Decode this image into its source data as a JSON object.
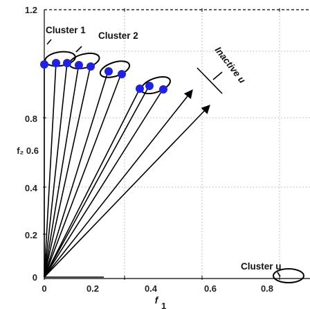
{
  "x_ticks": [
    "0",
    "0.2",
    "0.4",
    "0.6",
    "0.8"
  ],
  "y_ticks": [
    "1.2",
    "0.8",
    "0.6",
    "0.4",
    "0.2",
    "0"
  ],
  "x_axis_symbol": "f",
  "x_axis_sub": "1",
  "y_axis_label": "f₂ 0.6",
  "cluster_1_label": "Cluster 1",
  "cluster_2_label": "Cluster 2",
  "cluster_u_label": "Cluster u",
  "cluster_u_mark": "ᵪ",
  "inactive_label": "Inactive u",
  "colors": {
    "vector": "#000000",
    "dot": "#1e22e6",
    "grid": "#999999"
  }
}
